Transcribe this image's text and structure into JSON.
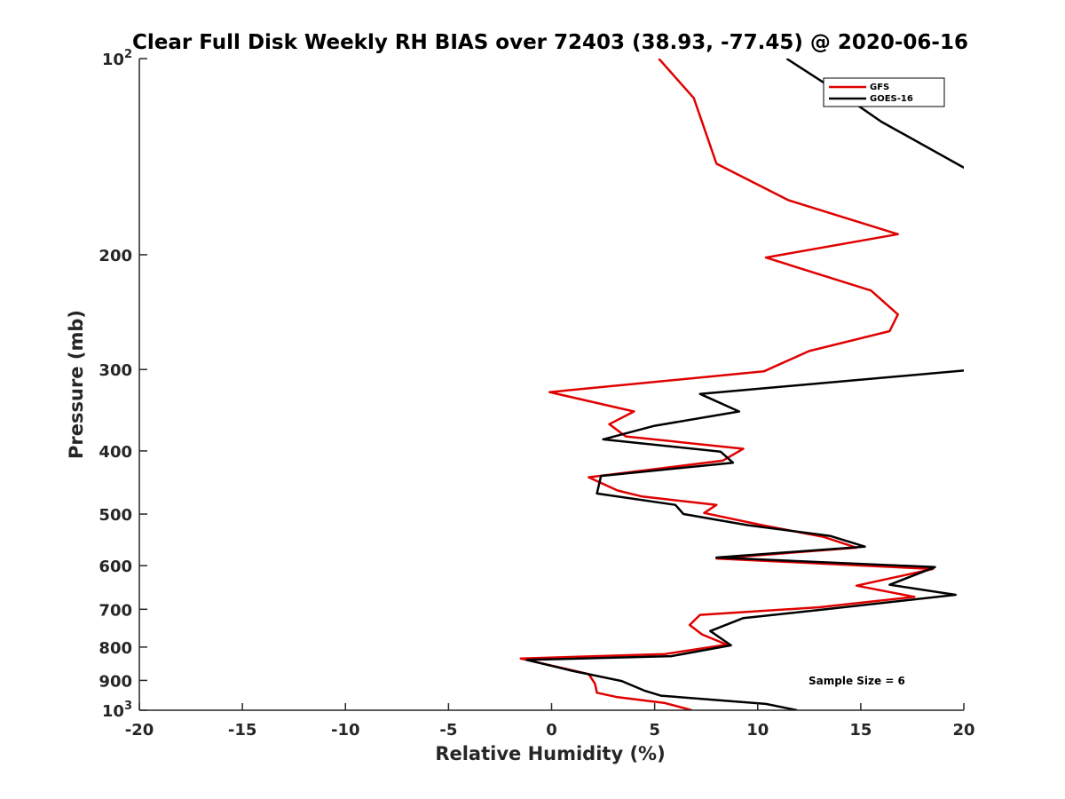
{
  "chart_data": {
    "type": "line",
    "title": "Clear Full Disk Weekly RH BIAS over 72403 (38.93, -77.45) @ 2020-06-16",
    "xlabel": "Relative Humidity (%)",
    "ylabel": "Pressure (mb)",
    "xlim": [
      -20,
      20
    ],
    "ylim": [
      100,
      1000
    ],
    "yscale": "log",
    "y_reversed": true,
    "grid": false,
    "legend_position": "top-right",
    "x_ticks": [
      -20,
      -15,
      -10,
      -5,
      0,
      5,
      10,
      15,
      20
    ],
    "y_ticks": [
      {
        "value": 100,
        "label": "10",
        "exp": "2"
      },
      {
        "value": 200,
        "label": "200"
      },
      {
        "value": 300,
        "label": "300"
      },
      {
        "value": 400,
        "label": "400"
      },
      {
        "value": 500,
        "label": "500"
      },
      {
        "value": 600,
        "label": "600"
      },
      {
        "value": 700,
        "label": "700"
      },
      {
        "value": 800,
        "label": "800"
      },
      {
        "value": 900,
        "label": "900"
      },
      {
        "value": 1000,
        "label": "10",
        "exp": "3"
      }
    ],
    "annotation": "Sample Size = 6",
    "series": [
      {
        "name": "GFS",
        "color": "#e00000",
        "points": [
          [
            5.2,
            100
          ],
          [
            6.9,
            115
          ],
          [
            8.0,
            145
          ],
          [
            11.5,
            165
          ],
          [
            16.8,
            186
          ],
          [
            10.4,
            202
          ],
          [
            15.5,
            227
          ],
          [
            16.8,
            247
          ],
          [
            16.4,
            262
          ],
          [
            12.5,
            281
          ],
          [
            10.3,
            302
          ],
          [
            -0.1,
            325
          ],
          [
            4.0,
            348
          ],
          [
            2.8,
            364
          ],
          [
            3.6,
            380
          ],
          [
            9.3,
            397
          ],
          [
            8.3,
            414
          ],
          [
            1.8,
            439
          ],
          [
            3.2,
            460
          ],
          [
            4.4,
            470
          ],
          [
            8.0,
            484
          ],
          [
            7.4,
            498
          ],
          [
            10.2,
            520
          ],
          [
            13.2,
            542
          ],
          [
            14.8,
            563
          ],
          [
            8.0,
            585
          ],
          [
            18.5,
            607
          ],
          [
            14.8,
            644
          ],
          [
            17.6,
            670
          ],
          [
            13.0,
            695
          ],
          [
            7.2,
            714
          ],
          [
            6.7,
            740
          ],
          [
            7.3,
            765
          ],
          [
            8.5,
            793
          ],
          [
            5.5,
            820
          ],
          [
            -1.5,
            833
          ],
          [
            1.8,
            880
          ],
          [
            2.1,
            910
          ],
          [
            2.2,
            940
          ],
          [
            3.2,
            955
          ],
          [
            5.5,
            975
          ],
          [
            6.8,
            1000
          ]
        ]
      },
      {
        "name": "GOES-16",
        "color": "#000000",
        "points": [
          [
            11.4,
            100
          ],
          [
            14.0,
            113
          ],
          [
            16.0,
            125
          ],
          [
            20.5,
            150
          ],
          [
            20.6,
            300
          ],
          [
            7.2,
            327
          ],
          [
            9.1,
            348
          ],
          [
            5.0,
            366
          ],
          [
            2.5,
            384
          ],
          [
            8.2,
            401
          ],
          [
            8.8,
            417
          ],
          [
            2.4,
            437
          ],
          [
            2.2,
            465
          ],
          [
            6.0,
            484
          ],
          [
            6.4,
            500
          ],
          [
            9.5,
            520
          ],
          [
            13.5,
            540
          ],
          [
            15.2,
            561
          ],
          [
            8.0,
            583
          ],
          [
            18.6,
            603
          ],
          [
            16.4,
            642
          ],
          [
            19.6,
            665
          ],
          [
            13.3,
            700
          ],
          [
            9.3,
            722
          ],
          [
            7.7,
            756
          ],
          [
            8.7,
            795
          ],
          [
            5.8,
            826
          ],
          [
            -1.2,
            837
          ],
          [
            1.0,
            870
          ],
          [
            3.4,
            902
          ],
          [
            4.5,
            933
          ],
          [
            5.3,
            950
          ],
          [
            10.4,
            978
          ],
          [
            11.9,
            1000
          ]
        ]
      }
    ]
  }
}
